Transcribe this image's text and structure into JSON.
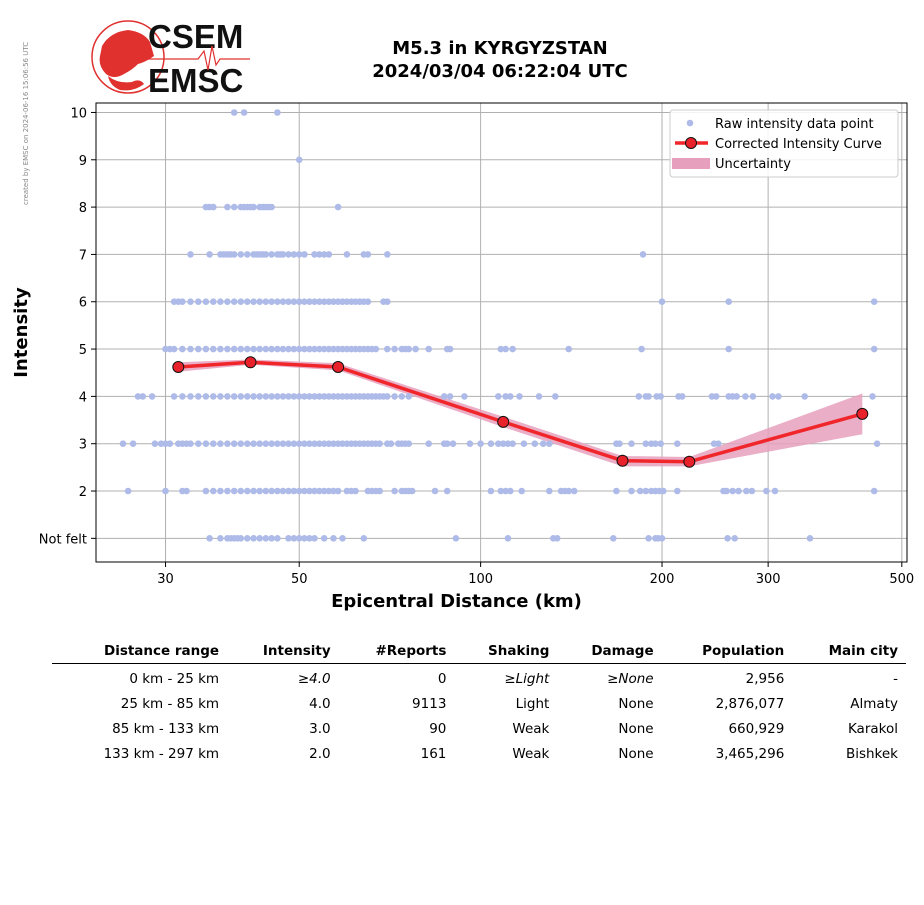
{
  "stamp": "created by EMSC on 2024-06-16 15:06:56 UTC",
  "logo": {
    "line1": "CSEM",
    "line2": "EMSC"
  },
  "title": {
    "line1": "M5.3 in KYRGYZSTAN",
    "line2": "2024/03/04 06:22:04 UTC"
  },
  "colors": {
    "raw": "#aebbe8",
    "curve": "#f0262a",
    "marker": "#e8212a",
    "band": "#e6a0bd"
  },
  "chart_data": {
    "type": "scatter",
    "xlabel": "Epicentral Distance (km)",
    "ylabel": "Intensity",
    "xscale": "log",
    "xlim": [
      23,
      510
    ],
    "ylim": [
      0.5,
      10.2
    ],
    "xticks": [
      30,
      50,
      100,
      200,
      300,
      500
    ],
    "xtick_labels": [
      "30",
      "50",
      "100",
      "200",
      "300",
      "500"
    ],
    "yticks": [
      1,
      2,
      3,
      4,
      5,
      6,
      7,
      8,
      9,
      10
    ],
    "ytick_labels": [
      "Not felt",
      "2",
      "3",
      "4",
      "5",
      "6",
      "7",
      "8",
      "9",
      "10"
    ],
    "grid": true,
    "legend_position": "top-right",
    "legend": [
      "Raw intensity data point",
      "Corrected Intensity Curve",
      "Uncertainty"
    ],
    "raw_points": [
      {
        "y": 10,
        "x": [
          39,
          40.5,
          46
        ]
      },
      {
        "y": 9,
        "x": [
          50
        ]
      },
      {
        "y": 8,
        "x": [
          35,
          35.5,
          36,
          38,
          39,
          40,
          40.5,
          41,
          41.5,
          42,
          43,
          43.5,
          44,
          44.5,
          45,
          58
        ]
      },
      {
        "y": 7,
        "x": [
          33,
          35.5,
          37,
          37.5,
          38,
          38.5,
          39,
          40,
          41,
          42,
          42.5,
          43,
          43.5,
          44,
          45,
          46,
          46.5,
          47,
          48,
          49,
          50,
          51,
          53,
          54,
          55,
          56,
          60,
          64,
          65,
          70,
          186
        ]
      },
      {
        "y": 6,
        "x": [
          31,
          31.5,
          32,
          33,
          34,
          35,
          36,
          37,
          38,
          39,
          40,
          41,
          42,
          43,
          44,
          45,
          46,
          47,
          48,
          49,
          50,
          51,
          52,
          53,
          54,
          55,
          56,
          57,
          58,
          59,
          60,
          61,
          62,
          63,
          64,
          65,
          69,
          70,
          200,
          258,
          450
        ]
      },
      {
        "y": 5,
        "x": [
          30,
          30.5,
          31,
          32,
          33,
          34,
          35,
          36,
          37,
          38,
          39,
          40,
          41,
          42,
          43,
          44,
          45,
          46,
          47,
          48,
          49,
          50,
          51,
          52,
          53,
          54,
          55,
          56,
          57,
          58,
          59,
          60,
          61,
          62,
          63,
          64,
          65,
          66,
          67,
          70,
          72,
          74,
          75,
          76,
          78,
          82,
          88,
          89,
          108,
          110,
          113,
          140,
          185,
          258,
          450
        ]
      },
      {
        "y": 4,
        "x": [
          27,
          27.5,
          28.5,
          31,
          32,
          33,
          34,
          35,
          36,
          37,
          38,
          39,
          40,
          41,
          42,
          43,
          44,
          45,
          46,
          47,
          48,
          49,
          50,
          51,
          52,
          53,
          54,
          55,
          56,
          57,
          58,
          59,
          60,
          61,
          62,
          63,
          64,
          65,
          66,
          67,
          68,
          69,
          70,
          72,
          74,
          76,
          87,
          89,
          94,
          107,
          110,
          112,
          116,
          125,
          133,
          183,
          188,
          190,
          196,
          199,
          213,
          216,
          242,
          246,
          258,
          262,
          266,
          275,
          283,
          305,
          312,
          345,
          447
        ]
      },
      {
        "y": 3,
        "x": [
          25.5,
          26.5,
          28.8,
          29.5,
          30,
          30.5,
          31.5,
          32,
          32.5,
          33,
          34,
          35,
          36,
          37,
          38,
          39,
          40,
          41,
          42,
          43,
          44,
          45,
          46,
          47,
          48,
          49,
          50,
          51,
          52,
          53,
          54,
          55,
          56,
          57,
          58,
          59,
          60,
          61,
          62,
          63,
          64,
          65,
          66,
          67,
          68,
          70,
          71,
          73,
          74,
          75,
          76,
          82,
          87,
          88,
          90,
          96,
          100,
          104,
          107,
          109,
          111,
          113,
          118,
          123,
          127,
          130,
          168,
          170,
          178,
          188,
          192,
          195,
          199,
          212,
          244,
          248,
          455
        ]
      },
      {
        "y": 2,
        "x": [
          26,
          30,
          32,
          32.5,
          35,
          36,
          37,
          38,
          39,
          40,
          41,
          42,
          43,
          44,
          45,
          46,
          47,
          48,
          49,
          50,
          51,
          52,
          53,
          54,
          55,
          56,
          57,
          58,
          60,
          61,
          62,
          65,
          66,
          67,
          68,
          72,
          74,
          75,
          76,
          77,
          84,
          88,
          104,
          108,
          110,
          112,
          117,
          130,
          136,
          138,
          140,
          143,
          168,
          178,
          184,
          188,
          192,
          195,
          198,
          201,
          212,
          253,
          256,
          262,
          268,
          276,
          282,
          298,
          308,
          450
        ]
      },
      {
        "y": 1,
        "x": [
          35.5,
          37,
          38,
          38.5,
          39,
          39.5,
          40,
          41,
          42,
          43,
          44,
          45,
          46,
          48,
          49,
          50,
          51,
          52,
          53,
          55,
          57,
          59,
          64,
          91,
          111,
          132,
          134,
          166,
          190,
          195,
          197,
          200,
          257,
          264,
          352
        ]
      }
    ],
    "series": [
      {
        "name": "Corrected Intensity Curve",
        "x": [
          31.5,
          41.5,
          58,
          109,
          172,
          222,
          430
        ],
        "y": [
          4.62,
          4.72,
          4.62,
          3.46,
          2.64,
          2.62,
          3.63
        ]
      }
    ],
    "uncertainty": {
      "x": [
        31.5,
        41.5,
        58,
        109,
        172,
        222,
        430
      ],
      "lower": [
        4.52,
        4.67,
        4.55,
        3.35,
        2.52,
        2.52,
        3.2
      ],
      "upper": [
        4.72,
        4.78,
        4.7,
        3.57,
        2.74,
        2.72,
        4.06
      ]
    }
  },
  "table": {
    "headers": [
      "Distance range",
      "Intensity",
      "#Reports",
      "Shaking",
      "Damage",
      "Population",
      "Main city"
    ],
    "rows": [
      {
        "range": "0 km -   25 km",
        "intensity": "≥4.0",
        "reports": "0",
        "shaking": "≥Light",
        "damage": "≥None",
        "population": "2,956",
        "city": "-"
      },
      {
        "range": "25 km -   85 km",
        "intensity": "4.0",
        "reports": "9113",
        "shaking": "Light",
        "damage": "None",
        "population": "2,876,077",
        "city": "Almaty"
      },
      {
        "range": "85 km -  133 km",
        "intensity": "3.0",
        "reports": "90",
        "shaking": "Weak",
        "damage": "None",
        "population": "660,929",
        "city": "Karakol"
      },
      {
        "range": "133 km -  297 km",
        "intensity": "2.0",
        "reports": "161",
        "shaking": "Weak",
        "damage": "None",
        "population": "3,465,296",
        "city": "Bishkek"
      }
    ]
  }
}
